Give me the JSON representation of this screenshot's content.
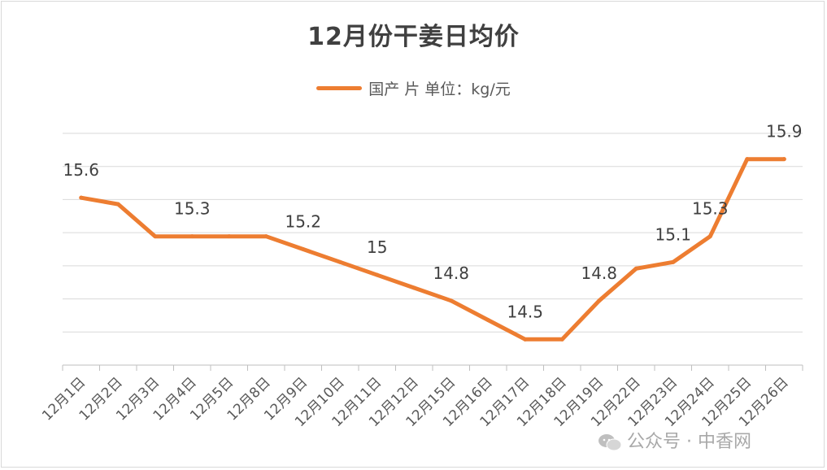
{
  "chart_data": {
    "type": "line",
    "title": "12月份干姜日均价",
    "categories": [
      "12月1日",
      "12月2日",
      "12月3日",
      "12月4日",
      "12月5日",
      "12月8日",
      "12月9日",
      "12月10日",
      "12月11日",
      "12月12日",
      "12月15日",
      "12月16日",
      "12月17日",
      "12月18日",
      "12月19日",
      "12月22日",
      "12月23日",
      "12月24日",
      "12月25日",
      "12月26日"
    ],
    "series": [
      {
        "name": "国产 片 单位：kg/元",
        "values": [
          15.6,
          15.55,
          15.3,
          15.3,
          15.3,
          15.3,
          15.2,
          15.1,
          15.0,
          14.9,
          14.8,
          14.65,
          14.5,
          14.5,
          14.8,
          15.05,
          15.1,
          15.3,
          15.9,
          15.9
        ],
        "data_labels": [
          "15.6",
          "",
          "",
          "15.3",
          "",
          "",
          "15.2",
          "",
          "15",
          "",
          "14.8",
          "",
          "14.5",
          "",
          "14.8",
          "",
          "15.1",
          "15.3",
          "",
          "15.9"
        ],
        "color": "#ED7D31"
      }
    ],
    "ylim": [
      14.3,
      16.1
    ],
    "grid": true,
    "legend_position": "top",
    "xlabel": "",
    "ylabel": ""
  },
  "watermark": {
    "text": "公众号 · 中香网",
    "icon": "wechat-icon"
  }
}
